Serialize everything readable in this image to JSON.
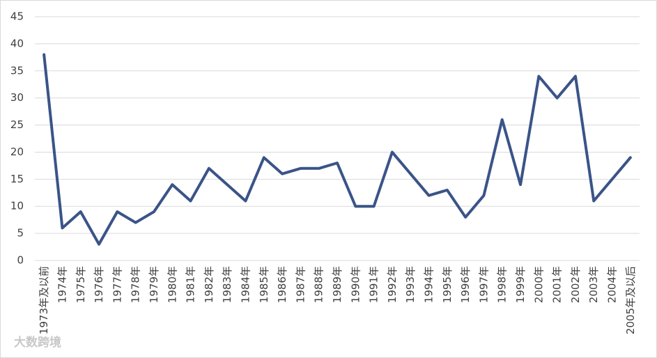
{
  "chart_data": {
    "type": "line",
    "categories": [
      "1973年及以前",
      "1974年",
      "1975年",
      "1976年",
      "1977年",
      "1978年",
      "1979年",
      "1980年",
      "1981年",
      "1982年",
      "1983年",
      "1984年",
      "1985年",
      "1986年",
      "1987年",
      "1988年",
      "1989年",
      "1990年",
      "1991年",
      "1992年",
      "1993年",
      "1994年",
      "1995年",
      "1996年",
      "1997年",
      "1998年",
      "1999年",
      "2000年",
      "2001年",
      "2002年",
      "2003年",
      "2004年",
      "2005年及以后"
    ],
    "values": [
      38,
      6,
      9,
      3,
      9,
      7,
      9,
      14,
      11,
      17,
      14,
      11,
      19,
      16,
      17,
      17,
      18,
      10,
      10,
      20,
      16,
      12,
      13,
      8,
      12,
      26,
      14,
      34,
      30,
      34,
      11,
      15,
      19
    ],
    "color": "#3a5488",
    "ylim": [
      0,
      45
    ],
    "yticks": [
      0,
      5,
      10,
      15,
      20,
      25,
      30,
      35,
      40,
      45
    ],
    "grid": true
  },
  "watermark": "大数跨境"
}
